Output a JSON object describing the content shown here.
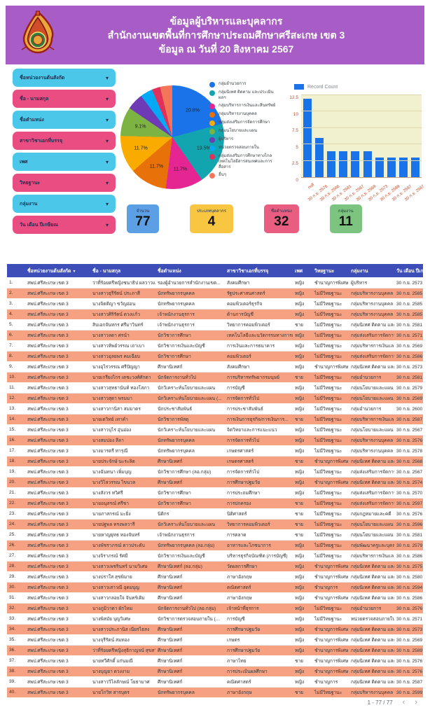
{
  "header": {
    "title_line1": "ข้อมูลผู้บริหารและบุคลากร",
    "title_line2": "สำนักงานเขตพื้นที่การศึกษาประถมศึกษาศรีสะเกษ เขต 3",
    "title_line3": "ข้อมูล ณ วันที่ 20 สิงหาคม 2567",
    "logo": "obec-emblem",
    "background_color": "#a85cc5"
  },
  "filters": {
    "items": [
      {
        "label": "ชื่อหน่วยงานต้นสังกัด",
        "color": "#4bc7e9"
      },
      {
        "label": "ชื่อ - นามสกุล",
        "color": "#e94d82"
      },
      {
        "label": "ชื่อตำแหน่ง",
        "color": "#4bc7e9"
      },
      {
        "label": "สาขาวิชาเอกที่บรรจุ",
        "color": "#e94d82"
      },
      {
        "label": "เพศ",
        "color": "#4bc7e9"
      },
      {
        "label": "วิทยฐานะ",
        "color": "#e94d82"
      },
      {
        "label": "กลุ่มงาน",
        "color": "#4bc7e9"
      },
      {
        "label": "วัน เดือน ปีเกษียณ",
        "color": "#e94d82"
      }
    ],
    "caret_icon": "▾"
  },
  "chart_data": [
    {
      "type": "pie",
      "title": "สัดส่วนบุคลากรตามกลุ่มงาน",
      "legend_position": "right",
      "slices": [
        {
          "name": "กลุ่มอำนวยการ",
          "pct": 20.8,
          "color": "#1a73e8",
          "labeled": true
        },
        {
          "name": "กลุ่มนิเทศ ติดตาม และประเมินผลฯ",
          "pct": 19.5,
          "color": "#12a4af",
          "labeled": true
        },
        {
          "name": "กลุ่มบริหารการเงินและสินทรัพย์",
          "pct": 11.7,
          "color": "#e52592",
          "labeled": true
        },
        {
          "name": "กลุ่มบริหารงานบุคคล",
          "pct": 11.7,
          "color": "#e8710a",
          "labeled": true
        },
        {
          "name": "กลุ่มส่งเสริมการจัดการศึกษา",
          "pct": 11.7,
          "color": "#f9ab00",
          "labeled": true
        },
        {
          "name": "กลุ่มนโยบายและแผน",
          "pct": 9.1,
          "color": "#7cb342",
          "labeled": true
        },
        {
          "name": "ผู้บริหาร",
          "pct": 5.2,
          "color": "#6f3ab5",
          "labeled": false
        },
        {
          "name": "หน่วยตรวจสอบภายใน",
          "pct": 3.9,
          "color": "#03a9f4",
          "labeled": false
        },
        {
          "name": "กลุ่มส่งเสริมการศึกษาทางไกลเทคโนโลยีสารสนเทศและการสื่อสาร",
          "pct": 2.6,
          "color": "#e0315b",
          "labeled": false
        },
        {
          "name": "อื่นๆ",
          "pct": 3.8,
          "color": "#f4765a",
          "labeled": false
        }
      ]
    },
    {
      "type": "bar",
      "series_name": "Record Count",
      "bar_color": "#1a73e8",
      "plot_background": "#f1f0cf",
      "categories": [
        "null",
        "30 ก.ย. 2576",
        "30 ก.ย. 2586",
        "30 ก.ย. 2581",
        "30 ก.ย. 2567",
        "30 ก.ย. 2569",
        "30 ก.ย. 2573",
        "30 ก.ย. 2599",
        "30 ก.ย. 2597",
        "30 ก.ย. 2587"
      ],
      "values": [
        12,
        6,
        4,
        4,
        4,
        4,
        3,
        3,
        3,
        3
      ],
      "ylim": [
        0,
        12.5
      ],
      "yticks": [
        0,
        2.5,
        5,
        7.5,
        10,
        12.5
      ],
      "grid": true,
      "xlabel": "",
      "ylabel": ""
    }
  ],
  "scorecards": [
    {
      "label": "จำนวน",
      "value": "77",
      "color": "#5c9fe5"
    },
    {
      "label": "ประเภทบุคลากร",
      "value": "4",
      "color": "#f8c640"
    },
    {
      "label": "ชื่อตำแหน่ง",
      "value": "32",
      "color": "#e85d80"
    },
    {
      "label": "กลุ่มงาน",
      "value": "11",
      "color": "#7cc47f"
    }
  ],
  "table": {
    "header_color": "#3d4eb8",
    "alt_row_color": "#f7a183",
    "sort_icon": "▾",
    "columns": [
      "",
      "ชื่อหน่วยงานต้นสังกัด",
      "ชื่อ - นามสกุล",
      "ชื่อตำแหน่ง",
      "สาขาวิชาเอกที่บรรจุ",
      "เพศ",
      "วิทยฐานะ",
      "กลุ่มงาน",
      "วัน เดือน ปีเกษียณ"
    ],
    "rows": [
      [
        "1.",
        "สพป.ศรีสะเกษ เขต 3",
        "ว่าที่ร้อยตรีหญิงชนาธิป ผลวาวแวว...",
        "รองผู้อำนวยการสำนักงานเขต...",
        "สังคมศึกษา",
        "หญิง",
        "ชำนาญการพิเศษ",
        "ผู้บริหาร",
        "30 ก.ย. 2573"
      ],
      [
        "2.",
        "สพป.ศรีสะเกษ เขต 3",
        "นางสาวธุรีรัตน์ ประภาสี",
        "นักทรัพยากรบุคคล",
        "รัฐประศาสนศาสตร์",
        "หญิง",
        "ไม่มีวิทยฐานะ",
        "กลุ่มบริหารงานบุคคล",
        "30 ก.ย. 2585"
      ],
      [
        "3.",
        "สพป.ศรีสะเกษ เขต 3",
        "นางจิตติญา ขวัญอ่อน",
        "นักทรัพยากรบุคคล",
        "คอมพิวเตอร์ธุรกิจ",
        "หญิง",
        "ไม่มีวิทยฐานะ",
        "กลุ่มบริหารงานบุคคล",
        "30 ก.ย. 2585"
      ],
      [
        "4.",
        "สพป.ศรีสะเกษ เขต 3",
        "นางสาวศิริรัตน์ ดวงแก้ว",
        "เจ้าพนักงานธุรการ",
        "ด้านการบัญชี",
        "หญิง",
        "ไม่มีวิทยฐานะ",
        "กลุ่มบริหารงานบุคคล",
        "30 ก.ย. 2585"
      ],
      [
        "5.",
        "สพป.ศรีสะเกษ เขต 3",
        "สิบเอกจันทกร ศรีมาวินทร์",
        "เจ้าพนักงานธุรการ",
        "วิทยาการคอมพิวเตอร์",
        "ชาย",
        "ไม่มีวิทยฐานะ",
        "กลุ่มนิเทศ ติดตาม และประเมินผ...",
        "30 ก.ย. 2581"
      ],
      [
        "6.",
        "สพป.ศรีสะเกษ เขต 3",
        "นางสาวลดา ศรนำ",
        "นักวิชาการศึกษา",
        "เทคโนโลยีและนวัตกรรมทางการศ...",
        "หญิง",
        "ไม่มีวิทยฐานะ",
        "กลุ่มส่งเสริมการจัดการศึกษา",
        "30 ก.ย. 2571"
      ],
      [
        "7.",
        "สพป.ศรีสะเกษ เขต 3",
        "นางสาวทิพย์วรรณ เถาเบา",
        "นักวิชาการเงินและบัญชี",
        "การเงินและการธนาคาร",
        "หญิง",
        "ไม่มีวิทยฐานะ",
        "กลุ่มบริหารการเงินและสินทรัพย์",
        "30 ก.ย. 2569"
      ],
      [
        "8.",
        "สพป.ศรีสะเกษ เขต 3",
        "นางสาวอุลยพร คมเฉียบ",
        "นักวิชาการศึกษา",
        "คอมพิวเตอร์",
        "หญิง",
        "ไม่มีวิทยฐานะ",
        "กลุ่มส่งเสริมการจัดการศึกษา",
        "30 ก.ย. 2586"
      ],
      [
        "9.",
        "สพป.ศรีสะเกษ เขต 3",
        "นางอุไรวรรณ ศรีปัญญา",
        "ศึกษานิเทศก์",
        "สังคมศึกษา",
        "หญิง",
        "ชำนาญการพิเศษ",
        "กลุ่มนิเทศ ติดตาม และประเมินผ...",
        "30 ก.ย. 2573"
      ],
      [
        "10.",
        "สพป.ศรีสะเกษ เขต 3",
        "นายเกรียงไกร เตชะวงศ์ศักดา",
        "นักจัดการงานทั่วไป",
        "การบริหารทรัพยากรมนุษย์",
        "ชาย",
        "ไม่มีวิทยฐานะ",
        "กลุ่มอำนวยการ",
        "30 ก.ย. 2581"
      ],
      [
        "11.",
        "สพป.ศรีสะเกษ เขต 3",
        "นางสาวสุทธานันท์ ทองโสภา",
        "นักวิเคราะห์นโยบายและแผน",
        "การบัญชี",
        "หญิง",
        "ไม่มีวิทยฐานะ",
        "กลุ่มนโยบายและแผน",
        "30 ก.ย. 2579"
      ],
      [
        "12.",
        "สพป.ศรีสะเกษ เขต 3",
        "นางสาวสุดา พรมมา",
        "นักวิเคราะห์นโยบายและแผน (...",
        "การจัดการทั่วไป",
        "หญิง",
        "ไม่มีวิทยฐานะ",
        "กลุ่มนโยบายและแผน",
        "30 ก.ย. 2569"
      ],
      [
        "13.",
        "สพป.ศรีสะเกษ เขต 3",
        "นางสาวกานิสา สมมาตร",
        "นักประชาสัมพันธ์",
        "การประชาสัมพันธ์",
        "หญิง",
        "ไม่มีวิทยฐานะ",
        "กลุ่มอำนวยการ",
        "30 ก.ย. 2600"
      ],
      [
        "14.",
        "สพป.ศรีสะเกษ เขต 3",
        "นายเดวิทย์ เทาคำ",
        "นักวิชาการพัสดุ",
        "การเงินการธุรกิจ/การเงินการ...",
        "ชาย",
        "ไม่มีวิทยฐานะ",
        "กลุ่มบริหารการเงินและสินทรัพย์",
        "30 ก.ย. 2587"
      ],
      [
        "15.",
        "สพป.ศรีสะเกษ เขต 3",
        "นางสาวบุไร อุ่นอ่อง",
        "นักวิเคราะห์นโยบายและแผน",
        "จิตวิทยาและการแนะแนว",
        "หญิง",
        "ไม่มีวิทยฐานะ",
        "กลุ่มนโยบายและแผน",
        "30 ก.ย. 2567"
      ],
      [
        "16.",
        "สพป.ศรีสะเกษ เขต 3",
        "นางสมปอง ลีลา",
        "นักทรัพยากรบุคคล",
        "การจัดการทั่วไป",
        "หญิง",
        "ไม่มีวิทยฐานะ",
        "กลุ่มบริหารงานบุคคล",
        "30 ก.ย. 2576"
      ],
      [
        "17.",
        "สพป.ศรีสะเกษ เขต 3",
        "นางมารตรี ทารุณี",
        "นักทรัพยากรบุคคล",
        "เกษตรศาสตร์",
        "หญิง",
        "ไม่มีวิทยฐานะ",
        "กลุ่มบริหารงานบุคคล",
        "30 ก.ย. 2578"
      ],
      [
        "18.",
        "สพป.ศรีสะเกษ เขต 3",
        "นายประจักษ์ นะระลิต",
        "ศึกษานิเทศก์",
        "เกษตรศาสตร์",
        "ชาย",
        "ชำนาญการพิเศษ",
        "กลุ่มนิเทศ ติดตาม และประเมินผ...",
        "30 ก.ย. 2568"
      ],
      [
        "19.",
        "สพป.ศรีสะเกษ เขต 3",
        "นางฉันทนา เพิ่มบุญ",
        "นักวิชาการศึกษา (ลอ.กลุ่ม)",
        "การจัดการทั่วไป",
        "หญิง",
        "ไม่มีวิทยฐานะ",
        "กลุ่มส่งเสริมการจัดการศึกษา",
        "30 ก.ย. 2567"
      ],
      [
        "20.",
        "สพป.ศรีสะเกษ เขต 3",
        "นางวิไลวรรณ ไขนวล",
        "ศึกษานิเทศก์",
        "การศึกษาปฐมวัย",
        "หญิง",
        "ชำนาญการพิเศษ",
        "กลุ่มนิเทศ ติดตาม และประเมินผ...",
        "30 ก.ย. 2574"
      ],
      [
        "21.",
        "สพป.ศรีสะเกษ เขต 3",
        "นางสังวร ทวิศรี",
        "นักวิชาการศึกษา",
        "การประถมศึกษา",
        "หญิง",
        "ไม่มีวิทยฐานะ",
        "กลุ่มส่งเสริมการจัดการศึกษา",
        "30 ก.ย. 2570"
      ],
      [
        "22.",
        "สพป.ศรีสะเกษ เขต 3",
        "นายอนุสรณ์ ศรีชา",
        "นักวิชาการศึกษา",
        "การปกครอง",
        "ชาย",
        "ไม่มีวิทยฐานะ",
        "กลุ่มส่งเสริมการจัดการศึกษา",
        "30 ก.ย. 2597"
      ],
      [
        "23.",
        "สพป.ศรีสะเกษ เขต 3",
        "นายภาสกรณ์ มะยิ่ง",
        "นิติกร",
        "นิติศาสตร์",
        "ชาย",
        "ไม่มีวิทยฐานะ",
        "กลุ่มกฎหมายและคดี",
        "30 ก.ย. 2576"
      ],
      [
        "24.",
        "สพป.ศรีสะเกษ เขต 3",
        "นายปฐพล ทรงพลวารี",
        "นักวิเคราะห์นโยบายและแผน",
        "วิทยาการคอมพิวเตอร์",
        "ชาย",
        "ไม่มีวิทยฐานะ",
        "กลุ่มนโยบายและแผน",
        "30 ก.ย. 2596"
      ],
      [
        "25.",
        "สพป.ศรีสะเกษ เขต 3",
        "นายหาญยุทธ ทองจันทร์",
        "เจ้าพนักงานธุรการ",
        "การตลาด",
        "ชาย",
        "ไม่มีวิทยฐานะ",
        "กลุ่มนโยบายและแผน",
        "30 ก.ย. 2581"
      ],
      [
        "26.",
        "สพป.ศรีสะเกษ เขต 3",
        "นางพัชราภรณ์ ดาวประดับ",
        "นักทรัพยากรบุคคล (ลอ.กลุ่ม)",
        "อาหารและโภชนาการ",
        "หญิง",
        "ไม่มีวิทยฐานะ",
        "กลุ่มพัฒนาครูและบุคลากรทางกา...",
        "30 ก.ย. 2579"
      ],
      [
        "27.",
        "สพป.ศรีสะเกษ เขต 3",
        "นางจิราภรณ์ รัศมี",
        "นักวิชาการเงินและบัญชี",
        "บริหารธุรกิจบัณฑิต (การบัญชี)",
        "หญิง",
        "ไม่มีวิทยฐานะ",
        "กลุ่มบริหารการเงินและสินทรัพย์",
        "30 ก.ย. 2586"
      ],
      [
        "28.",
        "สพป.ศรีสะเกษ เขต 3",
        "นางสาวเพชรินทร์ นามวิเศษ",
        "ศึกษานิเทศก์ (ลอ.กลุ่ม)",
        "วัดผลการศึกษา",
        "หญิง",
        "ชำนาญการพิเศษ",
        "กลุ่มนิเทศ ติดตาม และประเมินผ...",
        "30 ก.ย. 2575"
      ],
      [
        "29.",
        "สพป.ศรีสะเกษ เขต 3",
        "นางปราใส สุขพิมาย",
        "ศึกษานิเทศก์",
        "ภาษาอังกฤษ",
        "หญิง",
        "ชำนาญการพิเศษ",
        "กลุ่มนิเทศ ติดตาม และประเมินผ...",
        "30 ก.ย. 2580"
      ],
      [
        "30.",
        "สพป.ศรีสะเกษ เขต 3",
        "นางสาวเสาวณี อุดมบุญ",
        "ศึกษานิเทศก์",
        "คณิตศาสตร์",
        "หญิง",
        "ชำนาญการ",
        "กลุ่มนิเทศ ติดตาม และประเมินผ...",
        "30 ก.ย. 2594"
      ],
      [
        "31.",
        "สพป.ศรีสะเกษ เขต 3",
        "นางสาวกลอยใจ จันทร์เติม",
        "ศึกษานิเทศก์",
        "ภาษาอังกฤษ",
        "หญิง",
        "ชำนาญการพิเศษ",
        "กลุ่มนิเทศ ติดตาม และประเมินผ...",
        "30 ก.ย. 2586"
      ],
      [
        "32.",
        "สพป.ศรีสะเกษ เขต 3",
        "นางภูมิวาดา ผักไหม",
        "นักจัดการงานทั่วไป (ลอ.กลุ่ม)",
        "เจ้าหน้าที่ธุรการ",
        "หญิง",
        "ไม่มีวิทยฐานะ",
        "กลุ่มอำนวยการ",
        "30 ก.ย. 2576"
      ],
      [
        "33.",
        "สพป.ศรีสะเกษ เขต 3",
        "นางพิสมัย บุญวิเศษ",
        "นักวิชาการตรวจสอบภายใน (...",
        "การบัญชี",
        "หญิง",
        "ไม่มีวิทยฐานะ",
        "หน่วยตรวจสอบภายใน",
        "30 ก.ย. 2571"
      ],
      [
        "34.",
        "สพป.ศรีสะเกษ เขต 3",
        "นางสาวประภานิส เนียรไธสง",
        "ศึกษานิเทศก์",
        "การศึกษาปฐมวัย",
        "หญิง",
        "ชำนาญการพิเศษ",
        "กลุ่มนิเทศ ติดตาม และประเมินผ...",
        "30 ก.ย. 2573"
      ],
      [
        "35.",
        "สพป.ศรีสะเกษ เขต 3",
        "นางจุรีรัตน์ สมทอง",
        "ศึกษานิเทศก์",
        "เกษตร",
        "หญิง",
        "ชำนาญการพิเศษ",
        "กลุ่มนิเทศ ติดตาม และประเมินผ...",
        "30 ก.ย. 2569"
      ],
      [
        "36.",
        "สพป.ศรีสะเกษ เขต 3",
        "ว่าที่ร้อยตรีหญิงสุธิกาญจน์ สุขสวัสดิ์",
        "ศึกษานิเทศก์",
        "การศึกษาปฐมวัย",
        "หญิง",
        "ชำนาญการพิเศษ",
        "กลุ่มนิเทศ ติดตาม และประเมินผ...",
        "30 ก.ย. 2589"
      ],
      [
        "37.",
        "สพป.ศรีสะเกษ เขต 3",
        "นายทวีศักดิ์ แก่นมณี",
        "ศึกษานิเทศก์",
        "ภาษาไทย",
        "ชาย",
        "ชำนาญการพิเศษ",
        "กลุ่มนิเทศ ติดตาม และประเมินผ...",
        "30 ก.ย. 2576"
      ],
      [
        "38.",
        "สพป.ศรีสะเกษ เขต 3",
        "นางบุญยา ดวงงาม",
        "ศึกษานิเทศก์",
        "การประเมินผลศึกษา",
        "หญิง",
        "ชำนาญการพิเศษ",
        "กลุ่มนิเทศ ติดตาม และประเมินผ...",
        "30 ก.ย. 2576"
      ],
      [
        "39.",
        "สพป.ศรีสะเกษ เขต 3",
        "นางสาววิไลลักษณ์ โยธามาศ",
        "ศึกษานิเทศก์",
        "คณิตศาสตร์",
        "หญิง",
        "ชำนาญการ",
        "กลุ่มนิเทศ ติดตาม และประเมินผ...",
        "30 ก.ย. 2587"
      ],
      [
        "40.",
        "สพป.ศรีสะเกษ เขต 3",
        "นายโกวิท สารบุตร",
        "นักทรัพยากรบุคคล",
        "ภาษาอังกฤษ",
        "ชาย",
        "ไม่มีวิทยฐานะ",
        "กลุ่มบริหารงานบุคคล",
        "30 ก.ย. 2599"
      ]
    ]
  },
  "pagination": {
    "info": "1 - 77 / 77",
    "prev_icon": "‹",
    "next_icon": "›"
  }
}
